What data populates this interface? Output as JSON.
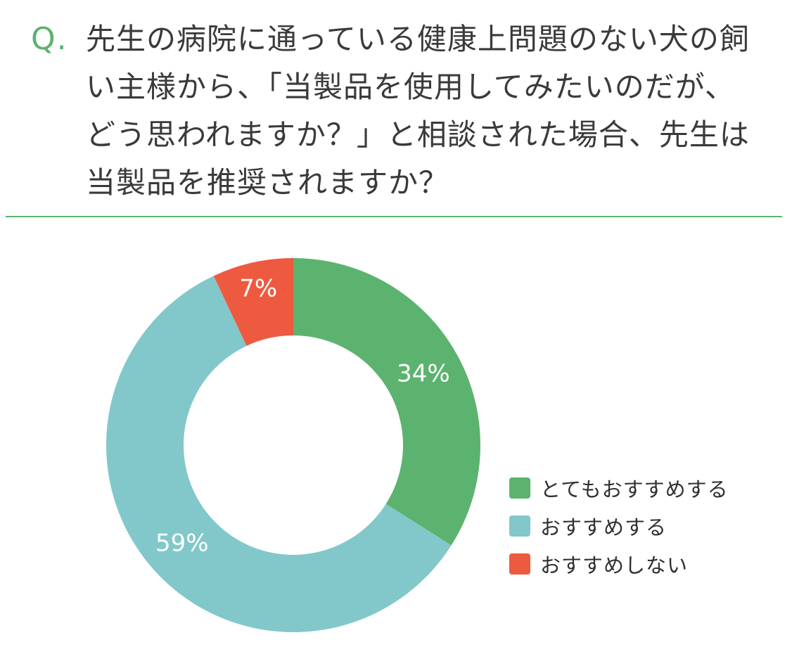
{
  "question": {
    "mark": "Q.",
    "text": "先生の病院に通っている健康上問題のない犬の飼い主様から、「当製品を使用してみたいのだが、どう思われますか？」と相談された場合、先生は当製品を推奨されますか？"
  },
  "chart_data": {
    "type": "pie",
    "style": "donut",
    "categories": [
      "とてもおすすめする",
      "おすすめする",
      "おすすめしない"
    ],
    "values": [
      34,
      59,
      7
    ],
    "labels": [
      "34%",
      "59%",
      "7%"
    ],
    "colors": [
      "#5bb36f",
      "#82c8ca",
      "#ee5a40"
    ],
    "legend": "right",
    "start": "top",
    "direction": "clockwise"
  }
}
